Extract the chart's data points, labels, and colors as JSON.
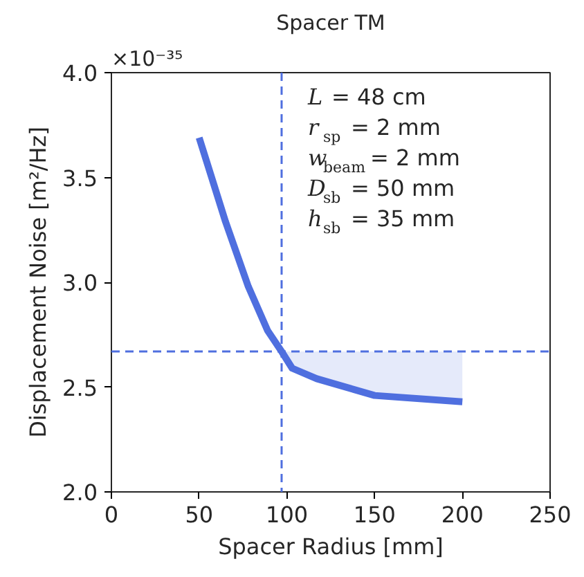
{
  "chart_data": {
    "type": "line",
    "title": "Spacer TM",
    "xlabel": "Spacer Radius [mm]",
    "ylabel": "Displacement Noise [m²/Hz]",
    "xlim": [
      0,
      250
    ],
    "xticks": [
      0,
      50,
      100,
      150,
      200,
      250
    ],
    "ylim": [
      2.0,
      4.0
    ],
    "yticks": [
      {
        "value": 2.0,
        "label": "2.0"
      },
      {
        "value": 2.5,
        "label": "2.5"
      },
      {
        "value": 3.0,
        "label": "3.0"
      },
      {
        "value": 3.5,
        "label": "3.5"
      },
      {
        "value": 4.0,
        "label": "4.0"
      }
    ],
    "x": [
      50,
      65,
      78,
      89,
      97,
      103,
      117,
      150,
      200
    ],
    "series": [
      {
        "color": "#4f6fdf",
        "values": [
          3.69,
          3.29,
          2.98,
          2.77,
          2.67,
          2.59,
          2.54,
          2.46,
          2.43
        ],
        "lower": [
          null,
          null,
          null,
          null,
          2.67,
          2.59,
          2.54,
          2.46,
          2.43
        ],
        "upper": [
          null,
          null,
          null,
          null,
          2.67,
          2.67,
          2.67,
          2.67,
          2.67
        ]
      }
    ],
    "ref_lines": [
      {
        "axis": "x",
        "value": 97,
        "color": "#4f6fdf",
        "line_style": "dashed"
      },
      {
        "axis": "y",
        "value": 2.67,
        "color": "#4f6fdf",
        "line_style": "dashed"
      }
    ],
    "annotations": [
      "×10⁻³⁵",
      "L = 48 cm",
      "r$_{sp}$ = 2 mm",
      "w$_{beam}$ = 2 mm",
      "D$_{sb}$ = 50 mm",
      "h$_{sb}$ = 35 mm"
    ],
    "grid": false
  }
}
